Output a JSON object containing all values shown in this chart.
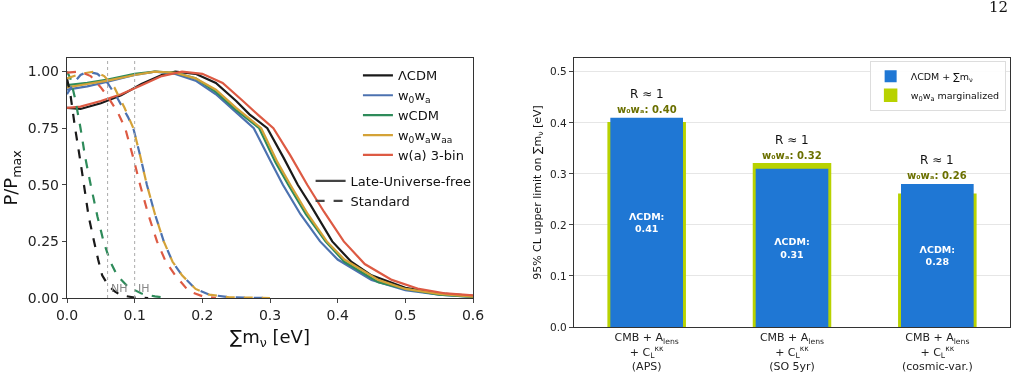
{
  "chart_data": [
    {
      "type": "line",
      "xlabel": "∑m$_{ν}$ [eV]",
      "ylabel": "P/P$_{max}$",
      "xlim": [
        0,
        0.6
      ],
      "xticks": [
        {
          "value": 0,
          "label": "0.0"
        },
        0.1,
        0.2,
        0.3,
        0.4,
        0.5,
        0.6
      ],
      "ylim": [
        0,
        1.06
      ],
      "yticks": [
        {
          "value": 0,
          "label": "0.00"
        },
        0.25,
        {
          "value": 0.5,
          "label": "0.50"
        },
        0.75,
        {
          "value": 1,
          "label": "1.00"
        }
      ],
      "grid": false,
      "legend": "top right",
      "ref_lines": [
        {
          "axis": "x",
          "value": 0.06,
          "label": "NH",
          "color": "#aaaaaa",
          "line_style": "dotted"
        },
        {
          "axis": "x",
          "value": 0.1,
          "label": "IH",
          "color": "#aaaaaa",
          "line_style": "dotted"
        }
      ],
      "series": [
        {
          "name": "ΛCDM",
          "color": "#1a1a1a",
          "line_style": "solid",
          "x": [
            0,
            0.02,
            0.05,
            0.08,
            0.11,
            0.14,
            0.16,
            0.19,
            0.22,
            0.25,
            0.27,
            0.296,
            0.32,
            0.341,
            0.36,
            0.392,
            0.42,
            0.45,
            0.5,
            0.55,
            0.6
          ],
          "values": [
            0.84,
            0.835,
            0.86,
            0.895,
            0.945,
            0.985,
            1.0,
            0.99,
            0.95,
            0.87,
            0.81,
            0.75,
            0.62,
            0.5,
            0.41,
            0.25,
            0.16,
            0.1,
            0.045,
            0.02,
            0.01
          ]
        },
        {
          "name": "w$_{0}$w$_{a}$",
          "color": "#4c72b0",
          "line_style": "solid",
          "x": [
            0,
            0.03,
            0.06,
            0.1,
            0.13,
            0.16,
            0.19,
            0.22,
            0.25,
            0.276,
            0.3,
            0.319,
            0.345,
            0.374,
            0.4,
            0.45,
            0.5,
            0.55,
            0.6
          ],
          "values": [
            0.92,
            0.935,
            0.955,
            0.985,
            1.0,
            0.99,
            0.96,
            0.9,
            0.82,
            0.75,
            0.61,
            0.5,
            0.37,
            0.25,
            0.17,
            0.08,
            0.035,
            0.015,
            0.005
          ]
        },
        {
          "name": "wCDM",
          "color": "#2e8b5a",
          "line_style": "solid",
          "x": [
            0,
            0.03,
            0.06,
            0.1,
            0.13,
            0.16,
            0.19,
            0.22,
            0.25,
            0.284,
            0.308,
            0.327,
            0.353,
            0.382,
            0.41,
            0.46,
            0.5,
            0.55,
            0.6
          ],
          "values": [
            0.94,
            0.95,
            0.965,
            0.99,
            1.0,
            0.995,
            0.97,
            0.91,
            0.83,
            0.75,
            0.6,
            0.5,
            0.37,
            0.25,
            0.16,
            0.07,
            0.04,
            0.015,
            0.005
          ]
        },
        {
          "name": "w$_{0}$w$_{a}$w$_{aa}$",
          "color": "#d4a237",
          "line_style": "solid",
          "x": [
            0,
            0.03,
            0.06,
            0.1,
            0.13,
            0.16,
            0.19,
            0.22,
            0.25,
            0.287,
            0.311,
            0.33,
            0.356,
            0.384,
            0.41,
            0.46,
            0.5,
            0.55,
            0.6
          ],
          "values": [
            0.93,
            0.945,
            0.96,
            0.985,
            1.0,
            0.995,
            0.97,
            0.92,
            0.84,
            0.75,
            0.6,
            0.5,
            0.37,
            0.25,
            0.17,
            0.08,
            0.04,
            0.018,
            0.006
          ]
        },
        {
          "name": "w(a) 3-bin",
          "color": "#dd5a43",
          "line_style": "solid",
          "x": [
            0,
            0.02,
            0.05,
            0.08,
            0.11,
            0.14,
            0.17,
            0.2,
            0.23,
            0.26,
            0.282,
            0.305,
            0.33,
            0.355,
            0.38,
            0.409,
            0.44,
            0.48,
            0.52,
            0.56,
            0.6
          ],
          "values": [
            0.84,
            0.845,
            0.87,
            0.9,
            0.94,
            0.98,
            1.0,
            0.99,
            0.95,
            0.87,
            0.81,
            0.75,
            0.63,
            0.5,
            0.38,
            0.25,
            0.15,
            0.08,
            0.04,
            0.02,
            0.012
          ]
        },
        {
          "color": "#1a1a1a",
          "line_style": "dashed",
          "x": [
            0,
            0.005,
            0.012,
            0.02,
            0.025,
            0.032,
            0.04,
            0.046,
            0.052,
            0.06,
            0.07,
            0.08,
            0.1,
            0.12
          ],
          "values": [
            0.97,
            0.9,
            0.75,
            0.6,
            0.5,
            0.36,
            0.25,
            0.17,
            0.1,
            0.06,
            0.03,
            0.012,
            0.002,
            0
          ]
        },
        {
          "color": "#4c72b0",
          "line_style": "dashed",
          "x": [
            0,
            0.01,
            0.02,
            0.03,
            0.045,
            0.06,
            0.075,
            0.09,
            0.098,
            0.108,
            0.118,
            0.13,
            0.143,
            0.156,
            0.17,
            0.19,
            0.21,
            0.24,
            0.3
          ],
          "values": [
            0.9,
            0.95,
            0.985,
            1.0,
            0.99,
            0.95,
            0.88,
            0.8,
            0.75,
            0.63,
            0.5,
            0.37,
            0.25,
            0.16,
            0.1,
            0.04,
            0.015,
            0.003,
            0
          ]
        },
        {
          "color": "#2e8b5a",
          "line_style": "dashed",
          "x": [
            0,
            0.005,
            0.012,
            0.02,
            0.027,
            0.035,
            0.045,
            0.054,
            0.064,
            0.074,
            0.09,
            0.11,
            0.13,
            0.15
          ],
          "values": [
            1.0,
            0.97,
            0.88,
            0.75,
            0.62,
            0.5,
            0.36,
            0.25,
            0.16,
            0.1,
            0.05,
            0.02,
            0.007,
            0
          ]
        },
        {
          "color": "#d4a237",
          "line_style": "dashed",
          "x": [
            0,
            0.02,
            0.04,
            0.055,
            0.07,
            0.085,
            0.098,
            0.108,
            0.118,
            0.13,
            0.143,
            0.156,
            0.17,
            0.19,
            0.21,
            0.24,
            0.3
          ],
          "values": [
            0.97,
            0.99,
            1.0,
            0.98,
            0.93,
            0.84,
            0.75,
            0.63,
            0.5,
            0.37,
            0.25,
            0.16,
            0.1,
            0.04,
            0.015,
            0.003,
            0
          ]
        },
        {
          "color": "#dd5a43",
          "line_style": "dashed",
          "x": [
            0,
            0.02,
            0.035,
            0.05,
            0.06,
            0.075,
            0.086,
            0.097,
            0.108,
            0.12,
            0.133,
            0.146,
            0.16,
            0.18,
            0.2,
            0.22
          ],
          "values": [
            0.995,
            1.0,
            0.98,
            0.93,
            0.89,
            0.82,
            0.75,
            0.63,
            0.5,
            0.37,
            0.25,
            0.16,
            0.1,
            0.03,
            0.008,
            0
          ]
        },
        {
          "name": "Late-Universe-free",
          "color": "#444444",
          "line_style": "solid",
          "values": [
            null
          ]
        },
        {
          "name": "Standard",
          "color": "#444444",
          "line_style": "dashed",
          "values": [
            null
          ]
        }
      ]
    },
    {
      "type": "bar",
      "ylabel": "95% CL upper limit on ∑m$_{ν}$ [eV]",
      "categories": [
        "CMB + A$_{lens}$\n+ C$_{L}$$^{κκ}$\n(APS)",
        "CMB + A$_{lens}$\n+ C$_{L}$$^{κκ}$\n(SO 5yr)",
        "CMB + A$_{lens}$\n+ C$_{L}$$^{κκ}$\n(cosmic-var.)"
      ],
      "ylim": [
        0,
        0.527
      ],
      "yticks": [
        {
          "value": 0,
          "label": "0.0"
        },
        0.1,
        0.2,
        0.3,
        0.4,
        0.5
      ],
      "grid": "y",
      "legend": "top right",
      "series": [
        {
          "name": "ΛCDM + ∑m$_{ν}$",
          "color": "#1f77d4",
          "values": [
            0.41,
            0.31,
            0.28
          ],
          "value_labels": [
            "ΛCDM:\n0.41",
            "ΛCDM:\n0.31",
            "ΛCDM:\n0.28"
          ]
        },
        {
          "name": "w$_{0}$w$_{a}$ marginalized",
          "color": "#b8d200",
          "values": [
            0.4,
            0.32,
            0.26
          ],
          "value_labels": [
            "w₀wₐ: 0.40",
            "w₀wₐ: 0.32",
            "w₀wₐ: 0.26"
          ]
        }
      ],
      "annotations": [
        {
          "text": "R ≈ 1",
          "x": "CMB + A$_{lens}$\n+ C$_{L}$$^{κκ}$\n(APS)",
          "y": 0.41
        },
        {
          "text": "R ≈ 1",
          "x": "CMB + A$_{lens}$\n+ C$_{L}$$^{κκ}$\n(SO 5yr)",
          "y": 0.32
        },
        {
          "text": "R ≈ 1",
          "x": "CMB + A$_{lens}$\n+ C$_{L}$$^{κκ}$\n(cosmic-var.)",
          "y": 0.28
        },
        "12"
      ]
    }
  ]
}
